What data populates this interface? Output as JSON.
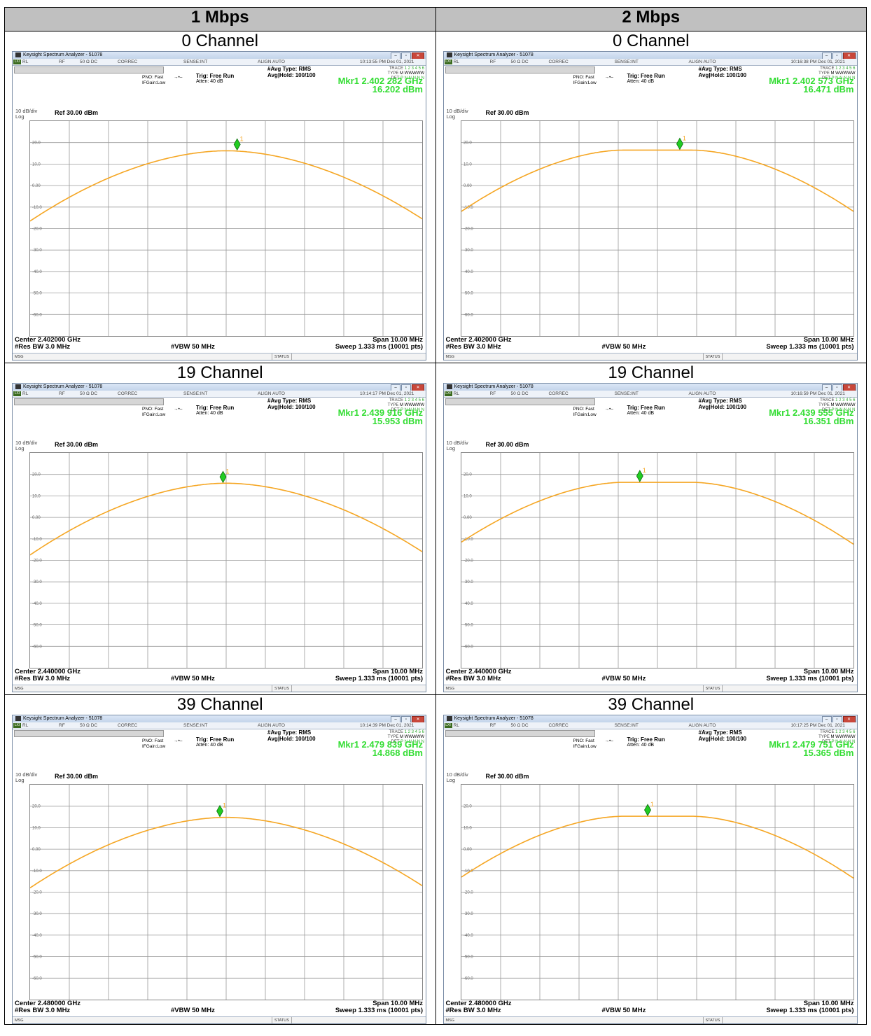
{
  "columns": [
    "1 Mbps",
    "2 Mbps"
  ],
  "common": {
    "window_title": "Keysight Spectrum Analyzer - 51078",
    "rl": "RL",
    "rf": "RF",
    "imp": "50 Ω  DC",
    "correc": "CORREC",
    "sense": "SENSE:INT",
    "align": "ALIGN AUTO",
    "avg_type": "#Avg Type: RMS",
    "avg_hold": "Avg|Hold: 100/100",
    "pno": "PNO: Fast",
    "ifgain": "IFGain:Low",
    "trig": "Trig: Free Run",
    "atten": "Atten: 40 dB",
    "trace_label": "TRACE",
    "trace_val": "1 2 3 4 5 6",
    "type_label": "TYPE",
    "type_val": "M WWWWW",
    "det_label": "DET",
    "det_val": "P N N N N N",
    "scale": "10 dB/div",
    "log": "Log",
    "ref": "Ref 30.00 dBm",
    "ytick_labels": [
      "20.0",
      "10.0",
      "0.00",
      "-10.0",
      "-20.0",
      "-30.0",
      "-40.0",
      "-50.0",
      "-60.0"
    ],
    "res_bw": "#Res BW 3.0 MHz",
    "vbw": "#VBW 50 MHz",
    "span": "Span 10.00 MHz",
    "sweep": "Sweep  1.333 ms (10001 pts)",
    "msg": "MSG",
    "status": "STATUS",
    "marker_label": "1",
    "colors": {
      "trace": "#f5a623",
      "marker": "#22cc22",
      "mkr_text": "#33dd33"
    }
  },
  "rows": [
    {
      "channel_title": "0 Channel",
      "panels": [
        {
          "time": "10:13:55 PM Dec 01, 2021",
          "mkr_freq": "Mkr1 2.402 282 GHz",
          "mkr_level": "16.202 dBm",
          "center": "Center 2.402000 GHz",
          "peak_db": 16.2,
          "edge_left_db": -16.5,
          "edge_right_db": -15.5,
          "marker_x_mhz": 0.28,
          "flat": 0
        },
        {
          "time": "10:16:38 PM Dec 01, 2021",
          "mkr_freq": "Mkr1 2.402 573 GHz",
          "mkr_level": "16.471 dBm",
          "center": "Center 2.402000 GHz",
          "peak_db": 16.5,
          "edge_left_db": -12.0,
          "edge_right_db": -12.0,
          "marker_x_mhz": 0.57,
          "flat": 1
        }
      ]
    },
    {
      "channel_title": "19 Channel",
      "panels": [
        {
          "time": "10:14:17 PM Dec 01, 2021",
          "mkr_freq": "Mkr1 2.439 916 GHz",
          "mkr_level": "15.953 dBm",
          "center": "Center 2.440000 GHz",
          "peak_db": 15.9,
          "edge_left_db": -17.5,
          "edge_right_db": -16.0,
          "marker_x_mhz": -0.08,
          "flat": 0
        },
        {
          "time": "10:16:59 PM Dec 01, 2021",
          "mkr_freq": "Mkr1 2.439 555 GHz",
          "mkr_level": "16.351 dBm",
          "center": "Center 2.440000 GHz",
          "peak_db": 16.3,
          "edge_left_db": -11.5,
          "edge_right_db": -12.5,
          "marker_x_mhz": -0.45,
          "flat": 1
        }
      ]
    },
    {
      "channel_title": "39 Channel",
      "panels": [
        {
          "time": "10:14:39 PM Dec 01, 2021",
          "mkr_freq": "Mkr1 2.479 839 GHz",
          "mkr_level": "14.868 dBm",
          "center": "Center 2.480000 GHz",
          "peak_db": 14.8,
          "edge_left_db": -18.0,
          "edge_right_db": -17.0,
          "marker_x_mhz": -0.16,
          "flat": 0
        },
        {
          "time": "10:17:25 PM Dec 01, 2021",
          "mkr_freq": "Mkr1 2.479 751 GHz",
          "mkr_level": "15.365 dBm",
          "center": "Center 2.480000 GHz",
          "peak_db": 15.3,
          "edge_left_db": -13.0,
          "edge_right_db": -13.5,
          "marker_x_mhz": -0.25,
          "flat": 1
        }
      ]
    }
  ]
}
